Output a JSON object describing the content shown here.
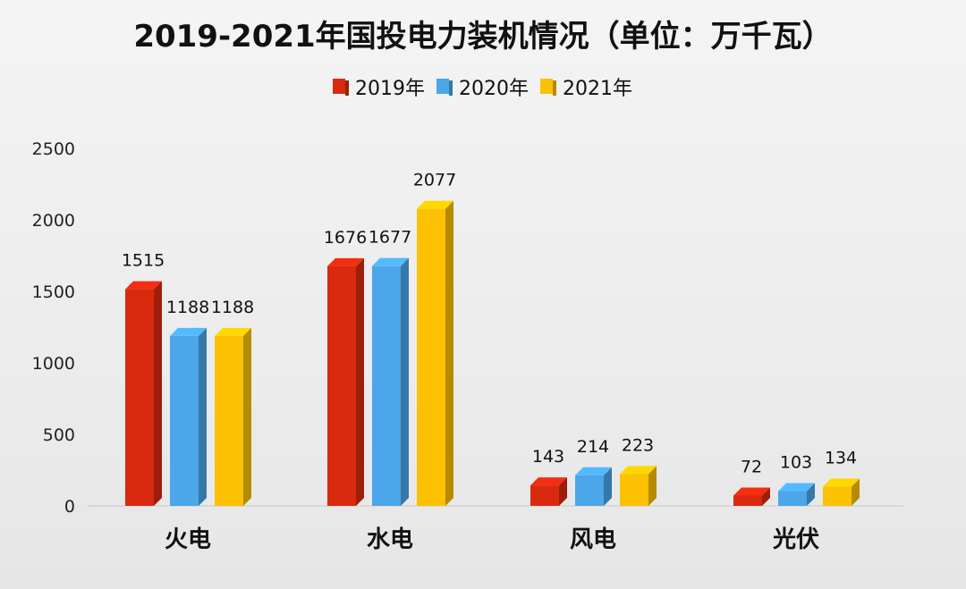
{
  "chart_data": {
    "type": "bar",
    "title": "2019-2021年国投电力装机情况（单位：万千瓦）",
    "categories": [
      "火电",
      "水电",
      "风电",
      "光伏"
    ],
    "series": [
      {
        "name": "2019年",
        "color": "#d9290f",
        "values": [
          1515,
          1676,
          143,
          72
        ]
      },
      {
        "name": "2020年",
        "color": "#4ba6ea",
        "values": [
          1188,
          1677,
          214,
          103
        ]
      },
      {
        "name": "2021年",
        "color": "#fbc102",
        "values": [
          1188,
          2077,
          223,
          134
        ]
      }
    ],
    "yticks": [
      0,
      500,
      1000,
      1500,
      2000,
      2500
    ],
    "ylim": [
      0,
      2500
    ],
    "legend_position": "top-center",
    "grid": false
  }
}
